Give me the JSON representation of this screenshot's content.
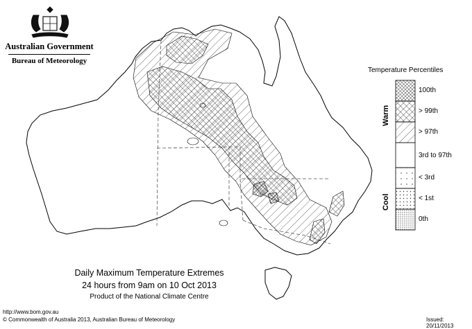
{
  "header": {
    "government": "Australian Government",
    "bureau": "Bureau of Meteorology"
  },
  "map": {
    "title_line1": "Daily Maximum Temperature Extremes",
    "title_line2": "24 hours from 9am on 10 Oct 2013",
    "credit": "Product of the National Climate Centre"
  },
  "legend": {
    "title": "Temperature Percentiles",
    "warm_label": "Warm",
    "cool_label": "Cool",
    "items": [
      {
        "label": "100th",
        "pattern": "cross-dense"
      },
      {
        "label": "> 99th",
        "pattern": "crosshatch"
      },
      {
        "label": "> 97th",
        "pattern": "diagonal"
      },
      {
        "label": "3rd to 97th",
        "pattern": "none"
      },
      {
        "label": "< 3rd",
        "pattern": "dots-sparse"
      },
      {
        "label": "< 1st",
        "pattern": "dots-medium"
      },
      {
        "label": "0th",
        "pattern": "dots-dense"
      }
    ]
  },
  "footer": {
    "url": "http://www.bom.gov.au",
    "copyright": "© Commonwealth of Australia 2013, Australian Bureau of Meteorology",
    "issued": "Issued: 20/11/2013"
  }
}
